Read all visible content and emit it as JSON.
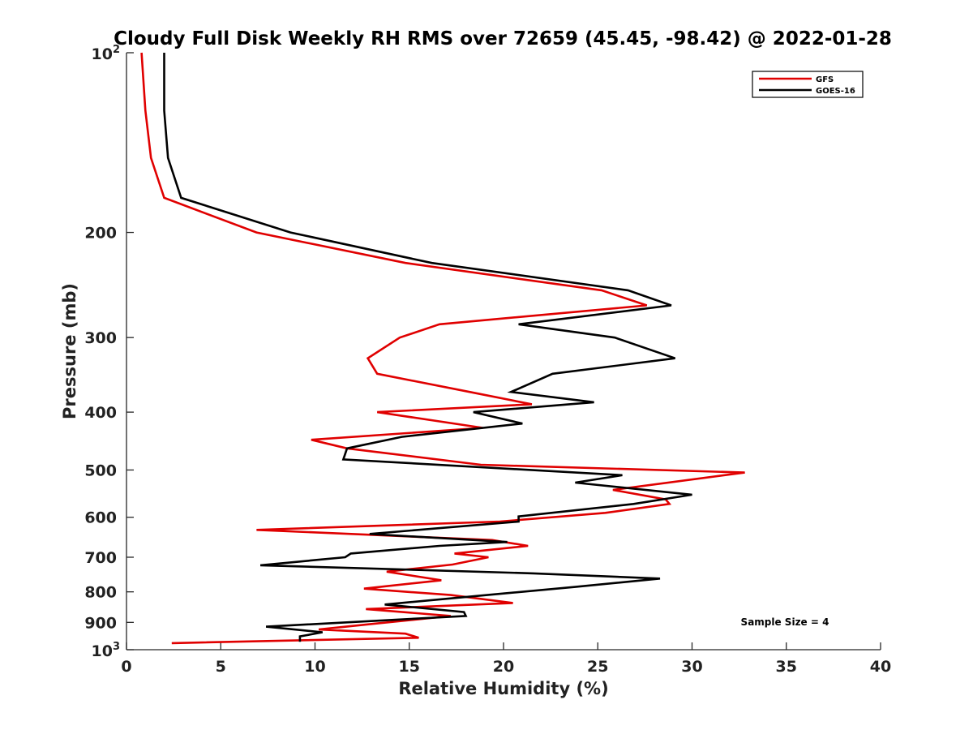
{
  "chart_data": {
    "type": "line",
    "title": "Cloudy Full Disk Weekly RH RMS over 72659 (45.45, -98.42) @ 2022-01-28",
    "xlabel": "Relative Humidity (%)",
    "ylabel": "Pressure (mb)",
    "xlim": [
      0,
      40
    ],
    "ylim": [
      100,
      1000
    ],
    "y_scale": "log",
    "y_reversed": true,
    "x_ticks": [
      0,
      5,
      10,
      15,
      20,
      25,
      30,
      35,
      40
    ],
    "y_ticks": [
      {
        "value": 100,
        "label": "10",
        "sup": "2"
      },
      {
        "value": 200,
        "label": "200",
        "sup": ""
      },
      {
        "value": 300,
        "label": "300",
        "sup": ""
      },
      {
        "value": 400,
        "label": "400",
        "sup": ""
      },
      {
        "value": 500,
        "label": "500",
        "sup": ""
      },
      {
        "value": 600,
        "label": "600",
        "sup": ""
      },
      {
        "value": 700,
        "label": "700",
        "sup": ""
      },
      {
        "value": 800,
        "label": "800",
        "sup": ""
      },
      {
        "value": 900,
        "label": "900",
        "sup": ""
      },
      {
        "value": 1000,
        "label": "10",
        "sup": "3"
      }
    ],
    "grid": false,
    "legend_position": "top-right",
    "annotation": "Sample Size = 4",
    "series": [
      {
        "name": "GFS",
        "color": "#e00000",
        "points": [
          [
            0.8,
            100
          ],
          [
            1.0,
            125
          ],
          [
            1.3,
            150
          ],
          [
            2.0,
            175
          ],
          [
            6.9,
            200
          ],
          [
            14.8,
            225
          ],
          [
            25.2,
            250
          ],
          [
            27.6,
            265
          ],
          [
            16.6,
            285
          ],
          [
            14.5,
            300
          ],
          [
            12.8,
            325
          ],
          [
            13.3,
            345
          ],
          [
            18.2,
            370
          ],
          [
            21.5,
            388
          ],
          [
            13.3,
            400
          ],
          [
            18.9,
            425
          ],
          [
            9.8,
            445
          ],
          [
            11.7,
            460
          ],
          [
            18.8,
            490
          ],
          [
            32.8,
            505
          ],
          [
            25.8,
            540
          ],
          [
            28.6,
            560
          ],
          [
            28.8,
            570
          ],
          [
            25.4,
            590
          ],
          [
            19.8,
            610
          ],
          [
            6.9,
            630
          ],
          [
            19.4,
            655
          ],
          [
            21.3,
            670
          ],
          [
            17.4,
            690
          ],
          [
            19.2,
            700
          ],
          [
            17.3,
            720
          ],
          [
            13.8,
            740
          ],
          [
            16.7,
            765
          ],
          [
            12.6,
            790
          ],
          [
            17.2,
            810
          ],
          [
            20.5,
            835
          ],
          [
            12.7,
            855
          ],
          [
            17.2,
            878
          ],
          [
            13.1,
            905
          ],
          [
            10.2,
            925
          ],
          [
            14.8,
            940
          ],
          [
            15.5,
            955
          ],
          [
            2.4,
            975
          ]
        ]
      },
      {
        "name": "GOES-16",
        "color": "#000000",
        "points": [
          [
            2.0,
            100
          ],
          [
            2.0,
            125
          ],
          [
            2.2,
            150
          ],
          [
            2.9,
            175
          ],
          [
            8.7,
            200
          ],
          [
            16.2,
            225
          ],
          [
            26.6,
            250
          ],
          [
            28.9,
            265
          ],
          [
            20.8,
            285
          ],
          [
            25.9,
            300
          ],
          [
            29.1,
            325
          ],
          [
            22.6,
            345
          ],
          [
            20.4,
            370
          ],
          [
            24.8,
            385
          ],
          [
            18.4,
            400
          ],
          [
            21.0,
            418
          ],
          [
            14.6,
            440
          ],
          [
            11.7,
            460
          ],
          [
            11.5,
            480
          ],
          [
            26.3,
            510
          ],
          [
            23.8,
            525
          ],
          [
            30.0,
            550
          ],
          [
            26.9,
            570
          ],
          [
            20.8,
            598
          ],
          [
            20.8,
            610
          ],
          [
            12.9,
            640
          ],
          [
            20.2,
            660
          ],
          [
            16.6,
            670
          ],
          [
            11.9,
            690
          ],
          [
            11.6,
            700
          ],
          [
            7.1,
            722
          ],
          [
            21.6,
            745
          ],
          [
            28.3,
            760
          ],
          [
            23.8,
            785
          ],
          [
            20.0,
            805
          ],
          [
            13.7,
            840
          ],
          [
            17.9,
            865
          ],
          [
            18.0,
            878
          ],
          [
            7.4,
            915
          ],
          [
            10.4,
            935
          ],
          [
            9.2,
            950
          ],
          [
            9.2,
            970
          ]
        ]
      }
    ]
  }
}
